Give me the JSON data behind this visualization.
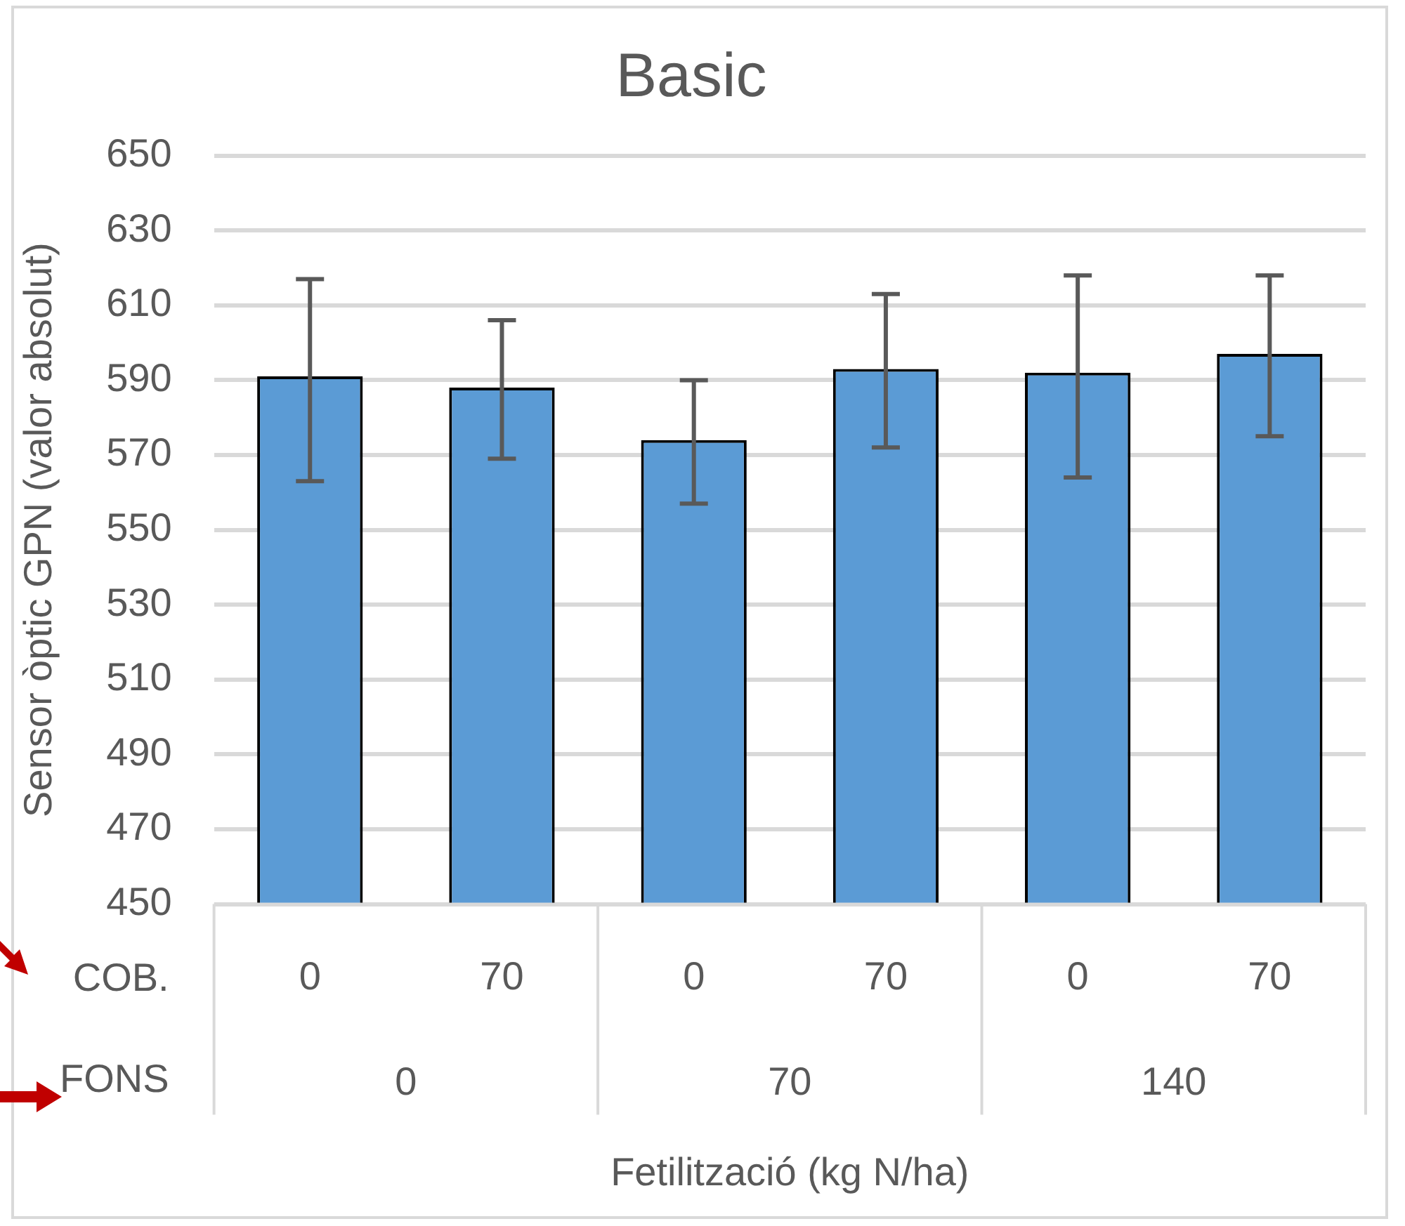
{
  "chart_data": {
    "type": "bar",
    "title": "Basic",
    "xlabel": "Fetilització (kg N/ha)",
    "ylabel": "Sensor òptic GPN (valor absolut)",
    "categories": [
      "0",
      "70",
      "0",
      "70",
      "0",
      "70"
    ],
    "values": [
      591,
      588,
      574,
      593,
      592,
      597
    ],
    "errors": [
      [
        563,
        617
      ],
      [
        569,
        606
      ],
      [
        557,
        590
      ],
      [
        572,
        613
      ],
      [
        564,
        618
      ],
      [
        575,
        618
      ]
    ],
    "color": "#5b9bd5",
    "ylim": [
      450,
      650
    ],
    "yticks": [
      450,
      470,
      490,
      510,
      530,
      550,
      570,
      590,
      610,
      630,
      650
    ],
    "grid": "y",
    "legend": false,
    "annotations": [
      "COB.",
      "FONS",
      "0",
      "70",
      "140"
    ]
  }
}
